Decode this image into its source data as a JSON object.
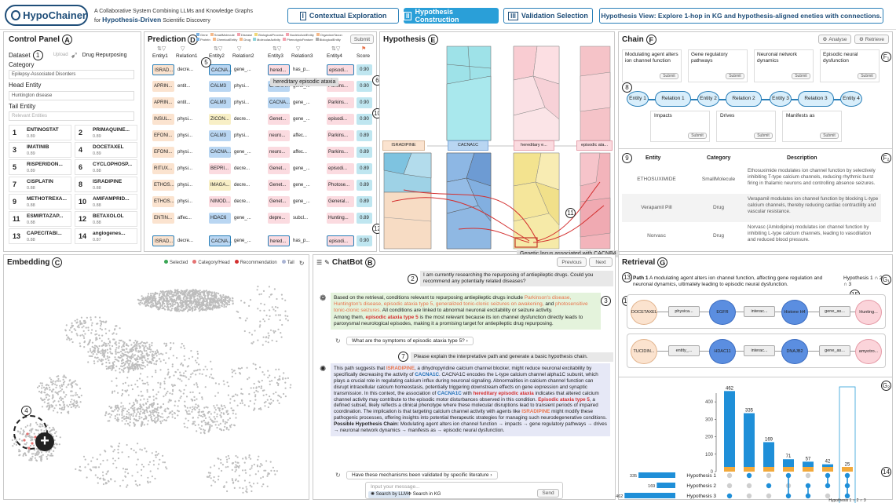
{
  "header": {
    "logo": "HypoChainer",
    "subtitle_line1": "A Collaborative System Combining LLMs and Knowledge Graphs",
    "subtitle_for": "for",
    "subtitle_bold": "Hypothesis-Driven",
    "subtitle_line2_rest": "Scientific Discovery",
    "tabs": [
      {
        "num": "I",
        "label": "Contextual Exploration"
      },
      {
        "num": "II",
        "label": "Hypothesis Construction"
      },
      {
        "num": "III",
        "label": "Validation Selection"
      }
    ],
    "view_text": "Hypothesis View: Explore 1-hop in KG and hypothesis-aligned eneties with connections."
  },
  "control": {
    "title": "Control Panel",
    "badge": "A",
    "dataset_label": "Dataset",
    "dataset_num": "1",
    "upload": "Upload",
    "dataset_value": "Drug Repurposing",
    "category_label": "Category",
    "category_value": "Epilepsy-Associated Disorders",
    "head_label": "Head Entity",
    "head_value": "Huntington disease",
    "tail_label": "Tail Entity",
    "tail_placeholder": "Relevant Entities",
    "results": [
      {
        "rank": "1",
        "name": "ENTINOSTAT",
        "score": "0.89"
      },
      {
        "rank": "2",
        "name": "PRIMAQUINE...",
        "score": "0.89"
      },
      {
        "rank": "3",
        "name": "IMATINIB",
        "score": "0.89"
      },
      {
        "rank": "4",
        "name": "DOCETAXEL",
        "score": "0.89"
      },
      {
        "rank": "5",
        "name": "RISPERIDON...",
        "score": "0.89"
      },
      {
        "rank": "6",
        "name": "CYCLOPHOSP...",
        "score": "0.88"
      },
      {
        "rank": "7",
        "name": "CISPLATIN",
        "score": "0.88"
      },
      {
        "rank": "8",
        "name": "ISRADIPINE",
        "score": "0.88"
      },
      {
        "rank": "9",
        "name": "METHOTREXA...",
        "score": "0.88"
      },
      {
        "rank": "10",
        "name": "AMIFAMPRID...",
        "score": "0.88"
      },
      {
        "rank": "11",
        "name": "ESMIRTAZAP...",
        "score": "0.88"
      },
      {
        "rank": "12",
        "name": "BETAXOLOL",
        "score": "0.88"
      },
      {
        "rank": "13",
        "name": "CAPECITABI...",
        "score": "0.88"
      },
      {
        "rank": "14",
        "name": "angiogenes...",
        "score": "0.87"
      }
    ]
  },
  "prediction": {
    "title": "Prediction",
    "badge": "D",
    "submit": "Submit",
    "legend": [
      "Gene",
      "SmallMolecule",
      "Disease",
      "BiologicalProcess",
      "NucleicAcidEntity",
      "OrganismTaxon",
      "Protein",
      "ChemicalEntity",
      "Drug",
      "MolecularActivity",
      "PhenotypicFeature",
      "BiologicalEntity"
    ],
    "legend_colors": [
      "#7ab0e0",
      "#f5b98a",
      "#f3a1ae",
      "#f0d878",
      "#f3a1ae",
      "#f5b98a",
      "#7ab0e0",
      "#f5b98a",
      "#f5b98a",
      "#8fd3d9",
      "#f3a1ae",
      "#aaa"
    ],
    "columns": [
      "Entity1",
      "Relation1",
      "Entity2",
      "Relation2",
      "Entity3",
      "Relation3",
      "Entity4",
      "Score"
    ],
    "tooltip": "hereditary episodic ataxia",
    "rows": [
      [
        "ISRAD...",
        "decre...",
        "CACNA...",
        "gene_...",
        "hered...",
        "has_p...",
        "episodi...",
        "0.90"
      ],
      [
        "APRIN...",
        "entit...",
        "CALM3",
        "physi...",
        "CACNA...",
        "gene_...",
        "Parkins...",
        "0.90"
      ],
      [
        "APRIN...",
        "entit...",
        "CALM3",
        "physi...",
        "CACNA...",
        "gene_...",
        "Parkins...",
        "0.90"
      ],
      [
        "INSUL...",
        "physi...",
        "ZICON...",
        "decre...",
        "Genet...",
        "gene_...",
        "episodi...",
        "0.90"
      ],
      [
        "EFONI...",
        "physi...",
        "CALM3",
        "physi...",
        "neuro...",
        "affec...",
        "Parkins...",
        "0.89"
      ],
      [
        "EFONI...",
        "physi...",
        "CACNA...",
        "gene_...",
        "neuro...",
        "affec...",
        "Parkins...",
        "0.89"
      ],
      [
        "RITUX...",
        "physi...",
        "BEPRI...",
        "decre...",
        "Genet...",
        "gene_...",
        "episodi...",
        "0.89"
      ],
      [
        "ETHOS...",
        "physi...",
        "IMAGA...",
        "decre...",
        "Genet...",
        "gene_...",
        "Photose...",
        "0.89"
      ],
      [
        "ETHOS...",
        "physi...",
        "NIMOD...",
        "decre...",
        "Genet...",
        "gene_...",
        "General...",
        "0.89"
      ],
      [
        "ENTIN...",
        "affec...",
        "HDAC6",
        "gene_...",
        "depre...",
        "subcl...",
        "Hunting...",
        "0.89"
      ],
      [
        "ISRAD...",
        "decre...",
        "CACNA...",
        "gene_...",
        "hered...",
        "has_p...",
        "episodi...",
        "0.90"
      ]
    ]
  },
  "hypothesis": {
    "title": "Hypothesis",
    "badge": "E",
    "nodes": [
      "ISRADIPINE",
      "CACNA1C",
      "hereditary e...",
      "episodic ata..."
    ],
    "tooltip": "Genetic locus associated with CACNB4"
  },
  "chain": {
    "title": "Chain",
    "badge": "F",
    "analyse": "Analyse",
    "retrieve": "Retrieve",
    "top_boxes": [
      "Modulating agent alters ion channel function",
      "Gene regulatory pathways",
      "Neuronal network dynamics",
      "Episodic neural dysfunction"
    ],
    "submit": "Submit",
    "flow": [
      "Entity 1",
      "Relation 1",
      "Entity 2",
      "Relation 2",
      "Entity 3",
      "Relation 3",
      "Entity 4"
    ],
    "bottom_boxes": [
      "Impacts",
      "Drives",
      "Manifests as"
    ],
    "table_headers": [
      "Entity",
      "Category",
      "Description"
    ],
    "table_rows": [
      {
        "entity": "ETHOSUXIMIDE",
        "category": "SmallMolecule",
        "desc": "Ethosuximide modulates ion channel function by selectively inhibiting T-type calcium channels, reducing rhythmic burst firing in thalamic neurons and controlling absence seizures."
      },
      {
        "entity": "Verapamil Pill",
        "category": "Drug",
        "desc": "Verapamil modulates ion channel function by blocking L-type calcium channels, thereby reducing cardiac contractility and vascular resistance."
      },
      {
        "entity": "Norvasc",
        "category": "Drug",
        "desc": "Norvasc (Amlodipine) modulates ion channel function by inhibiting L-type calcium channels, leading to vasodilation and reduced blood pressure."
      }
    ]
  },
  "embedding": {
    "title": "Embedding",
    "badge": "C",
    "legend": [
      "Selected",
      "Category/Head",
      "Recommendation",
      "Tail"
    ],
    "legend_colors": [
      "#3aa655",
      "#e57373",
      "#d32f2f",
      "#aab4d4"
    ]
  },
  "chatbot": {
    "title": "ChatBot",
    "badge": "B",
    "previous": "Previous",
    "next": "Next",
    "q1": "I am currently researching the repurposing of antiepileptic drugs. Could you recommend any potentially related diseases?",
    "a1_p1": "Based on the retrieval, conditions relevant to repurposing antiepileptic drugs include",
    "a1_h1": "Parkinson's disease, Huntington's disease, episodic ataxia type 5, generalized tonic-clonic seizures on awakening,",
    "a1_and": "and",
    "a1_h2": "photosensitive tonic-clonic seizures.",
    "a1_p2": "All conditions are linked to abnormal neuronal excitability or seizure activity.",
    "a1_p3": "Among them,",
    "a1_h3": "episodic ataxia type 5",
    "a1_p4": "is the most relevant because its ion channel dysfunction directly leads to paroxysmal neurological episodes, making it a promising target for antiepileptic drug repurposing.",
    "s1": "What are the symptoms of episodic ataxia type 5?",
    "q2": "Please explain the interpretative path and generate a basic hypothesis chain.",
    "a2_t1": "This path suggests that",
    "a2_isr": "ISRADIPINE",
    "a2_t2": ", a dihydropyridine calcium channel blocker, might reduce neuronal excitability by specifically decreasing the activity of",
    "a2_cac": "CACNA1C",
    "a2_t3": ". CACNA1C encodes the L-type calcium channel alpha1C subunit, which plays a crucial role in regulating calcium influx during neuronal signaling. Abnormalities in calcium channel function can disrupt intracellular calcium homeostasis, potentially triggering downstream effects on gene expression and synaptic transmission. In this context, the association of",
    "a2_cac2": "CACNA1C",
    "a2_t4": "with",
    "a2_her": "hereditary episodic ataxia",
    "a2_t5": "indicates that altered calcium channel activity may contribute to the episodic motor disturbances observed in this condition.",
    "a2_ep": "Episodic ataxia type 5",
    "a2_t6": ", a defined subset, likely reflects a clinical phenotype where these molecular disruptions lead to transient periods of impaired coordination. The implication is that targeting calcium channel activity with agents like",
    "a2_isr2": "ISRADIPINE",
    "a2_t7": "might modify these pathogenic processes, offering insights into potential therapeutic strategies for managing such neurodegenerative conditions.",
    "a2_chain_label": "Possible Hypothesis Chain:",
    "a2_chain": "Modulating agent alters ion channel function → impacts → gene regulatory pathways → drives → neuronal network dynamics → manifests as → episodic neural dysfunction.",
    "s2": "Have these mechanisms been validated by specific literature",
    "input_placeholder": "Input your message...",
    "search_llm": "Search by LLM",
    "search_kg": "Search in KG",
    "send": "Send"
  },
  "retrieval": {
    "title": "Retrieval",
    "badge": "G",
    "path_label": "Path 1",
    "path_text": "A modulating agent alters ion channel function, affecting gene regulation and neuronal dynamics, ultimately leading to episodic neural dysfunction.",
    "hyp_label": "Hypothesis 1 ∩ 2 ∩ 3",
    "row1": [
      "DOCETAXEL",
      "physica...",
      "EGFR",
      "interac...",
      "Histone H4",
      "gene_as...",
      "Hunting..."
    ],
    "row2": [
      "TUCIDIN...",
      "entity_...",
      "HDAC11",
      "interac...",
      "DNAJB2",
      "gene_as...",
      "amyotro..."
    ]
  },
  "upset": {
    "chart_data": {
      "type": "bar",
      "bars": [
        462,
        335,
        169,
        71,
        57,
        42,
        25
      ],
      "ylim": [
        0,
        450
      ],
      "yticks": [
        0,
        100,
        200,
        300,
        400
      ],
      "sets": [
        {
          "name": "Hypothesis 1",
          "size": 335
        },
        {
          "name": "Hypothesis 2",
          "size": 169
        },
        {
          "name": "Hypothesis 3",
          "size": 462
        }
      ],
      "membership": [
        [
          3
        ],
        [
          1
        ],
        [
          2
        ],
        [
          1,
          3
        ],
        [
          2,
          3
        ],
        [
          1,
          2
        ],
        [
          1,
          2,
          3
        ]
      ],
      "highlight_label": "Hypothesis 1 ∩ 2 ∩ 3"
    }
  },
  "markers": {
    "n2": "2",
    "n3": "3",
    "n4": "4",
    "n5": "5",
    "n6": "6",
    "n7": "7",
    "n8": "8",
    "n9": "9",
    "n10": "10",
    "n11": "11",
    "n12": "12",
    "n13": "13",
    "n14": "14",
    "n15": "15",
    "n16": "16",
    "f1": "F₁",
    "f2": "F₂",
    "g1": "G₁",
    "g2": "G₂"
  },
  "colors": {
    "accent": "#2a9fd8",
    "dark": "#1f4e79",
    "highlight_text": "#e8734a",
    "blue_text": "#1f6fb6"
  }
}
